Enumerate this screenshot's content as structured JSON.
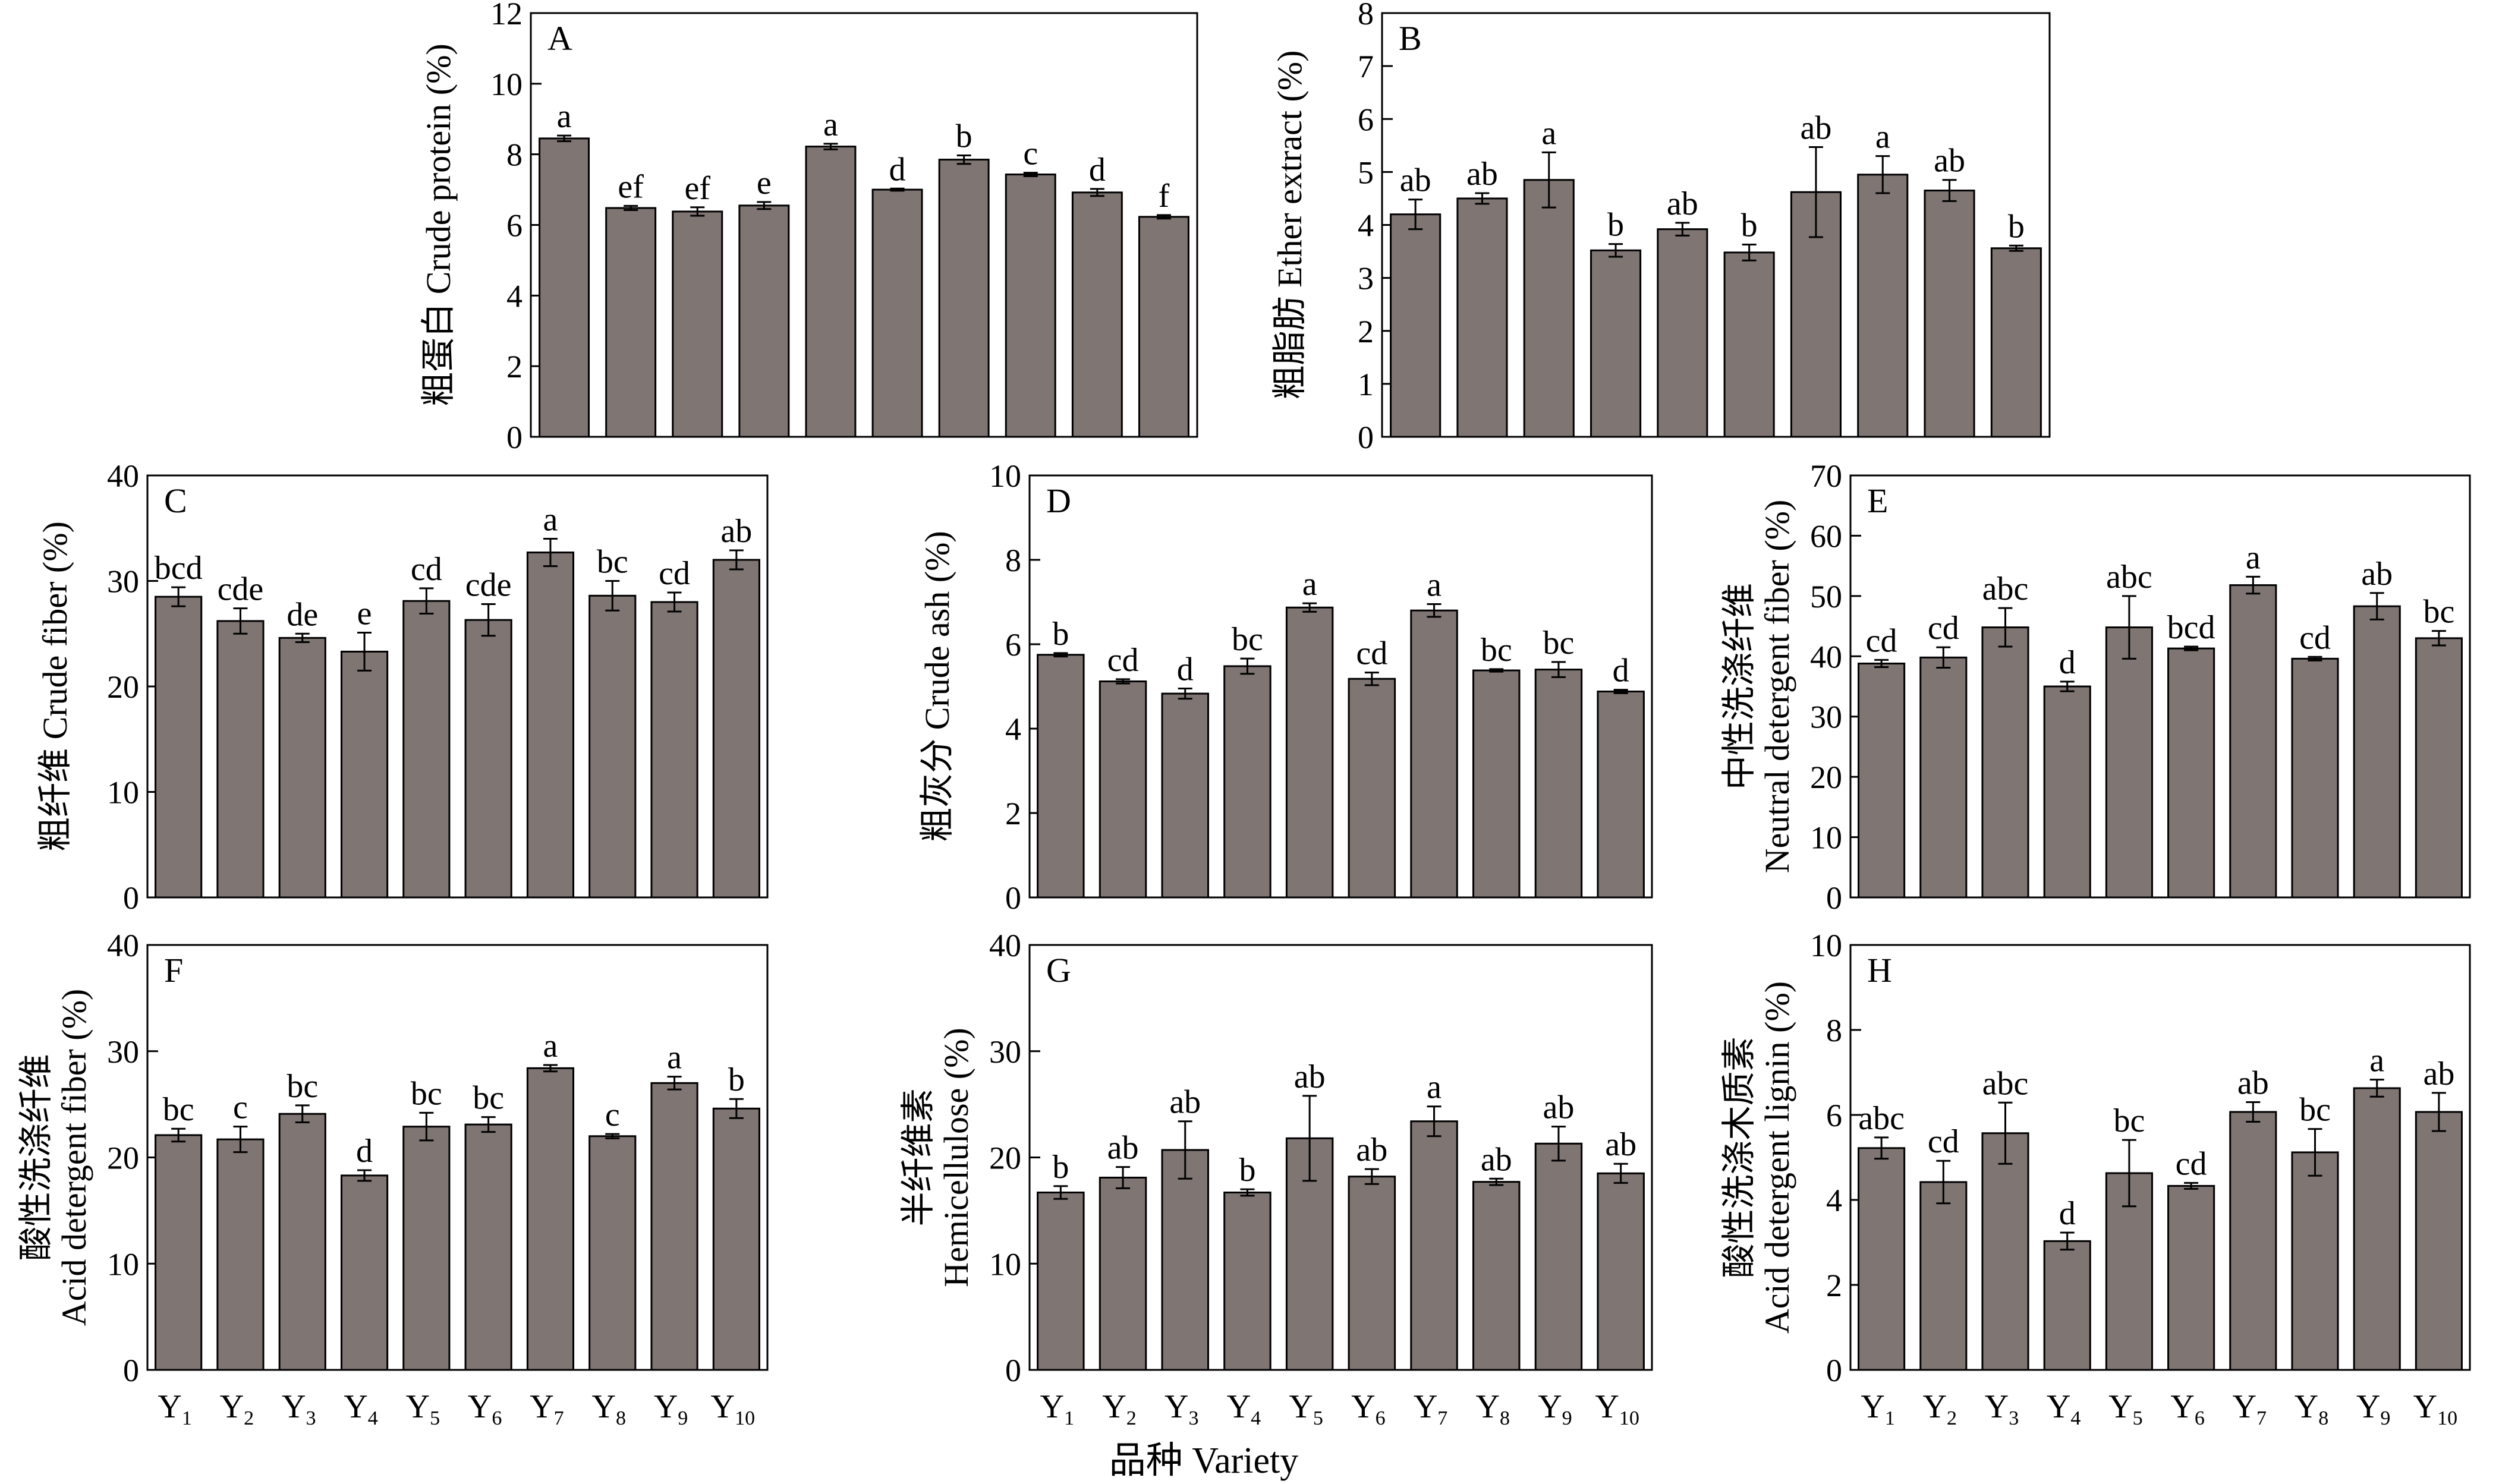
{
  "figure": {
    "x_axis_label": "品种 Variety",
    "bar_color": "#7f7573"
  },
  "chart_data": [
    {
      "id": "A",
      "type": "bar",
      "panel_label": "A",
      "ylabel_lines": [
        "粗蛋白 Crude protein (%)"
      ],
      "ylim": [
        0,
        12
      ],
      "yticks": [
        0,
        2,
        4,
        6,
        8,
        10,
        12
      ],
      "categories": [
        "Y1",
        "Y2",
        "Y3",
        "Y4",
        "Y5",
        "Y6",
        "Y7",
        "Y8",
        "Y9",
        "Y10"
      ],
      "values": [
        8.45,
        6.48,
        6.38,
        6.55,
        8.22,
        7.0,
        7.85,
        7.43,
        6.92,
        6.23
      ],
      "errors": [
        0.08,
        0.06,
        0.12,
        0.1,
        0.08,
        0.03,
        0.12,
        0.05,
        0.1,
        0.05
      ],
      "significance": [
        "a",
        "ef",
        "ef",
        "e",
        "a",
        "d",
        "b",
        "c",
        "d",
        "f"
      ],
      "show_xticks": false
    },
    {
      "id": "B",
      "type": "bar",
      "panel_label": "B",
      "ylabel_lines": [
        "粗脂肪 Ether extract (%)"
      ],
      "ylim": [
        0,
        8
      ],
      "yticks": [
        0,
        1,
        2,
        3,
        4,
        5,
        6,
        7,
        8
      ],
      "categories": [
        "Y1",
        "Y2",
        "Y3",
        "Y4",
        "Y5",
        "Y6",
        "Y7",
        "Y8",
        "Y9",
        "Y10"
      ],
      "values": [
        4.2,
        4.5,
        4.85,
        3.52,
        3.92,
        3.48,
        4.62,
        4.95,
        4.65,
        3.56
      ],
      "errors": [
        0.28,
        0.1,
        0.52,
        0.12,
        0.12,
        0.15,
        0.85,
        0.35,
        0.2,
        0.05
      ],
      "significance": [
        "ab",
        "ab",
        "a",
        "b",
        "ab",
        "b",
        "ab",
        "a",
        "ab",
        "b"
      ],
      "show_xticks": false
    },
    {
      "id": "C",
      "type": "bar",
      "panel_label": "C",
      "ylabel_lines": [
        "粗纤维 Crude fiber (%)"
      ],
      "ylim": [
        0,
        40
      ],
      "yticks": [
        0,
        10,
        20,
        30,
        40
      ],
      "categories": [
        "Y1",
        "Y2",
        "Y3",
        "Y4",
        "Y5",
        "Y6",
        "Y7",
        "Y8",
        "Y9",
        "Y10"
      ],
      "values": [
        28.5,
        26.2,
        24.6,
        23.3,
        28.1,
        26.3,
        32.7,
        28.6,
        28.0,
        32.0
      ],
      "errors": [
        0.9,
        1.2,
        0.4,
        1.8,
        1.2,
        1.5,
        1.3,
        1.4,
        0.9,
        0.9
      ],
      "significance": [
        "bcd",
        "cde",
        "de",
        "e",
        "cd",
        "cde",
        "a",
        "bc",
        "cd",
        "ab"
      ],
      "show_xticks": false
    },
    {
      "id": "D",
      "type": "bar",
      "panel_label": "D",
      "ylabel_lines": [
        "粗灰分 Crude ash (%)"
      ],
      "ylim": [
        0,
        10
      ],
      "yticks": [
        0,
        2,
        4,
        6,
        8,
        10
      ],
      "categories": [
        "Y1",
        "Y2",
        "Y3",
        "Y4",
        "Y5",
        "Y6",
        "Y7",
        "Y8",
        "Y9",
        "Y10"
      ],
      "values": [
        5.75,
        5.12,
        4.83,
        5.48,
        6.87,
        5.18,
        6.8,
        5.38,
        5.4,
        4.88
      ],
      "errors": [
        0.04,
        0.05,
        0.12,
        0.18,
        0.1,
        0.15,
        0.15,
        0.03,
        0.18,
        0.04
      ],
      "significance": [
        "b",
        "cd",
        "d",
        "bc",
        "a",
        "cd",
        "a",
        "bc",
        "bc",
        "d"
      ],
      "show_xticks": false
    },
    {
      "id": "E",
      "type": "bar",
      "panel_label": "E",
      "ylabel_lines": [
        "中性洗涤纤维",
        "Neutral detergent fiber (%)"
      ],
      "ylim": [
        0,
        70
      ],
      "yticks": [
        0,
        10,
        20,
        30,
        40,
        50,
        60,
        70
      ],
      "categories": [
        "Y1",
        "Y2",
        "Y3",
        "Y4",
        "Y5",
        "Y6",
        "Y7",
        "Y8",
        "Y9",
        "Y10"
      ],
      "values": [
        38.8,
        39.8,
        44.8,
        35.0,
        44.8,
        41.3,
        51.8,
        39.6,
        48.3,
        43.0
      ],
      "errors": [
        0.6,
        1.7,
        3.2,
        0.8,
        5.2,
        0.3,
        1.4,
        0.3,
        2.2,
        1.2
      ],
      "significance": [
        "cd",
        "cd",
        "abc",
        "d",
        "abc",
        "bcd",
        "a",
        "cd",
        "ab",
        "bc"
      ],
      "show_xticks": false
    },
    {
      "id": "F",
      "type": "bar",
      "panel_label": "F",
      "ylabel_lines": [
        "酸性洗涤纤维",
        "Acid detergent fiber (%)"
      ],
      "ylim": [
        0,
        40
      ],
      "yticks": [
        0,
        10,
        20,
        30,
        40
      ],
      "categories": [
        "Y1",
        "Y2",
        "Y3",
        "Y4",
        "Y5",
        "Y6",
        "Y7",
        "Y8",
        "Y9",
        "Y10"
      ],
      "values": [
        22.1,
        21.7,
        24.1,
        18.3,
        22.9,
        23.1,
        28.4,
        22.0,
        27.0,
        24.6
      ],
      "errors": [
        0.6,
        1.2,
        0.8,
        0.5,
        1.3,
        0.7,
        0.3,
        0.2,
        0.6,
        0.9
      ],
      "significance": [
        "bc",
        "c",
        "bc",
        "d",
        "bc",
        "bc",
        "a",
        "c",
        "a",
        "b"
      ],
      "show_xticks": true
    },
    {
      "id": "G",
      "type": "bar",
      "panel_label": "G",
      "ylabel_lines": [
        "半纤维素",
        "Hemicellulose (%)"
      ],
      "ylim": [
        0,
        40
      ],
      "yticks": [
        0,
        10,
        20,
        30,
        40
      ],
      "categories": [
        "Y1",
        "Y2",
        "Y3",
        "Y4",
        "Y5",
        "Y6",
        "Y7",
        "Y8",
        "Y9",
        "Y10"
      ],
      "values": [
        16.7,
        18.1,
        20.7,
        16.7,
        21.8,
        18.2,
        23.4,
        17.7,
        21.3,
        18.5
      ],
      "errors": [
        0.6,
        1.0,
        2.7,
        0.3,
        4.0,
        0.7,
        1.4,
        0.3,
        1.6,
        0.9
      ],
      "significance": [
        "b",
        "ab",
        "ab",
        "b",
        "ab",
        "ab",
        "a",
        "ab",
        "ab",
        "ab"
      ],
      "show_xticks": true
    },
    {
      "id": "H",
      "type": "bar",
      "panel_label": "H",
      "ylabel_lines": [
        "酸性洗涤木质素",
        "Acid detergent lignin (%)"
      ],
      "ylim": [
        0,
        10
      ],
      "yticks": [
        0,
        2,
        4,
        6,
        8,
        10
      ],
      "categories": [
        "Y1",
        "Y2",
        "Y3",
        "Y4",
        "Y5",
        "Y6",
        "Y7",
        "Y8",
        "Y9",
        "Y10"
      ],
      "values": [
        5.22,
        4.42,
        5.57,
        3.03,
        4.63,
        4.33,
        6.07,
        5.12,
        6.63,
        6.07
      ],
      "errors": [
        0.25,
        0.5,
        0.72,
        0.2,
        0.78,
        0.07,
        0.23,
        0.55,
        0.2,
        0.45
      ],
      "significance": [
        "abc",
        "cd",
        "abc",
        "d",
        "bc",
        "cd",
        "ab",
        "bc",
        "a",
        "ab"
      ],
      "show_xticks": true
    }
  ]
}
